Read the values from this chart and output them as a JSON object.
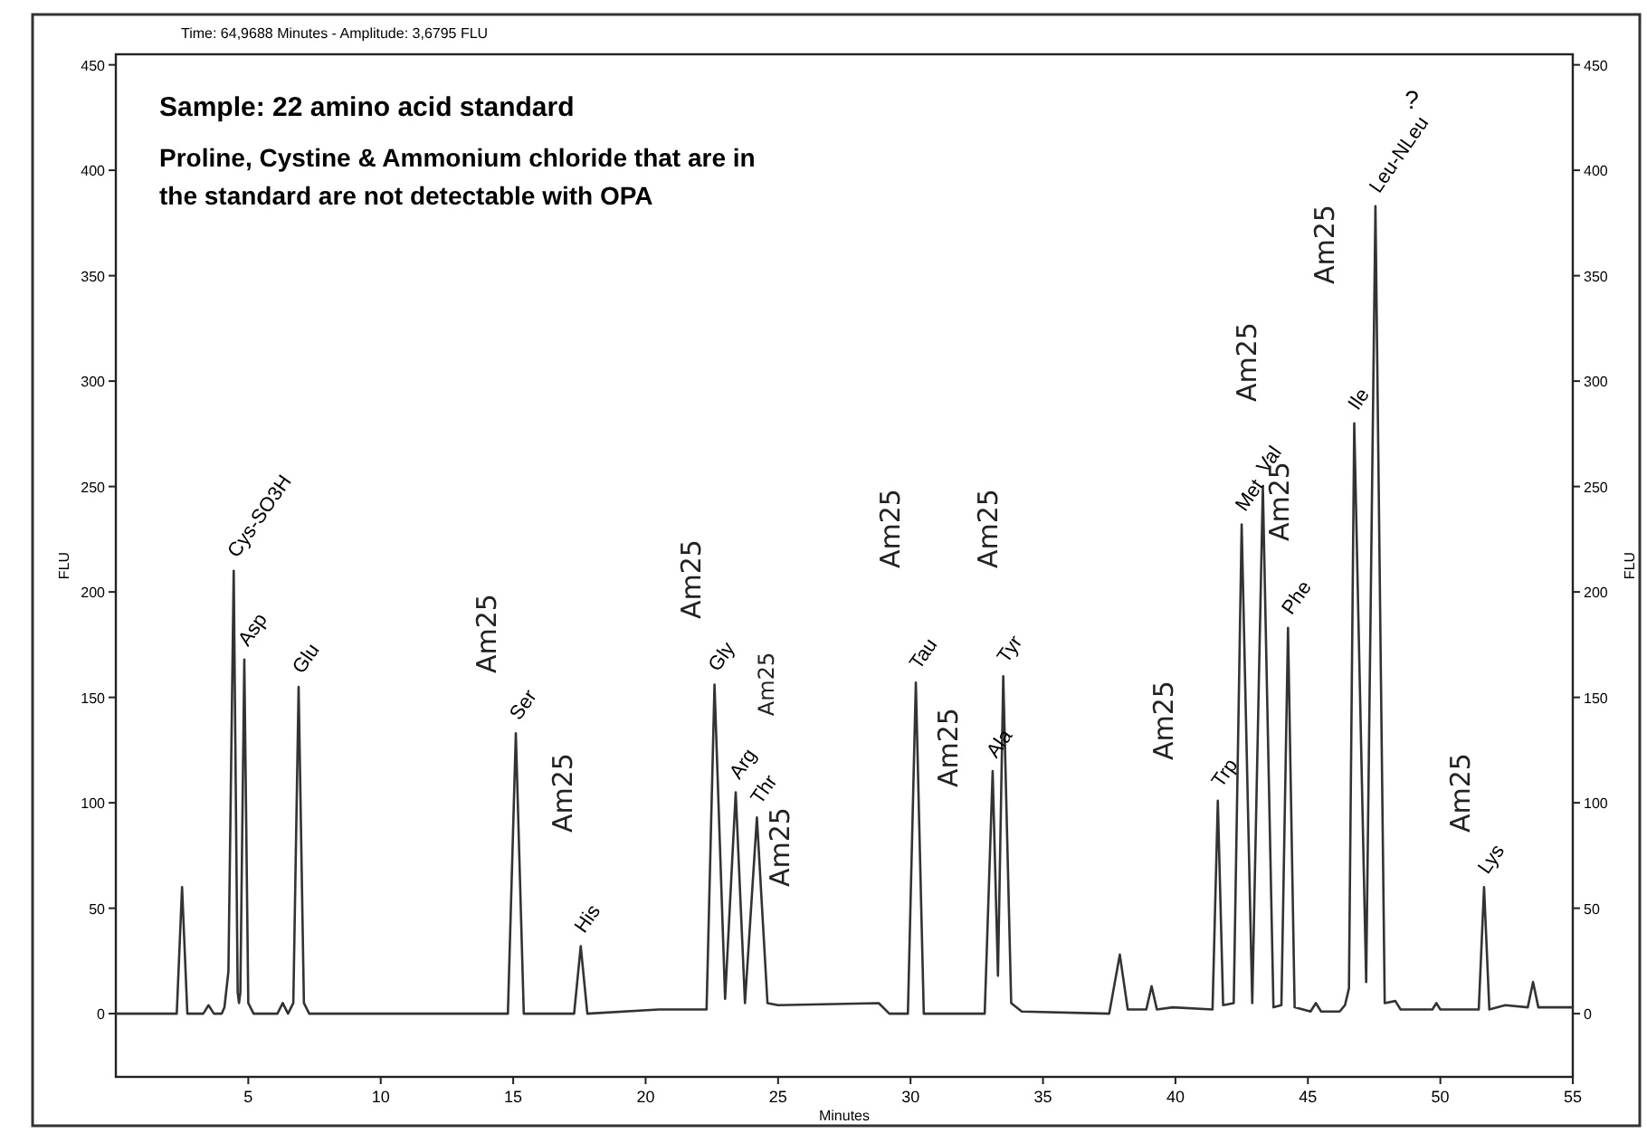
{
  "chart_data": {
    "type": "line",
    "title": "Sample: 22 amino acid standard",
    "subtitle": "Proline, Cystine & Ammonium chloride that are in the standard are not detectable with OPA",
    "xlabel": "Minutes",
    "ylabel": "FLU",
    "y2label": "FLU",
    "xlim": [
      0,
      55
    ],
    "xticks": [
      5,
      10,
      15,
      20,
      25,
      30,
      35,
      40,
      45,
      50,
      55
    ],
    "ylim": [
      -30,
      455
    ],
    "yticks": [
      0,
      50,
      100,
      150,
      200,
      250,
      300,
      350,
      400,
      450
    ],
    "y2lim": [
      -30,
      455
    ],
    "y2ticks": [
      0,
      50,
      100,
      150,
      200,
      250,
      300,
      350,
      400,
      450
    ],
    "grid": false,
    "marker": "none",
    "line_style": "solid",
    "series": [
      {
        "color": "#333333",
        "x": [
          0,
          2.3,
          2.5,
          2.7,
          3.3,
          3.5,
          3.7,
          4.0,
          4.1,
          4.25,
          4.45,
          4.6,
          4.65,
          4.7,
          4.85,
          5.0,
          5.2,
          6.1,
          6.3,
          6.5,
          6.7,
          6.9,
          7.1,
          7.3,
          14.8,
          15.1,
          15.4,
          17.3,
          17.55,
          17.8,
          20.5,
          22.3,
          22.6,
          23.0,
          23.4,
          23.75,
          24.2,
          24.6,
          25.0,
          28.8,
          29.2,
          29.9,
          30.2,
          30.5,
          32.8,
          33.1,
          33.3,
          33.5,
          33.8,
          34.2,
          37.5,
          37.9,
          38.2,
          38.9,
          39.1,
          39.3,
          39.9,
          41.4,
          41.6,
          41.8,
          42.2,
          42.5,
          42.9,
          43.3,
          43.7,
          44.0,
          44.25,
          44.5,
          45.1,
          45.3,
          45.5,
          46.2,
          46.4,
          46.55,
          46.75,
          47.2,
          47.55,
          47.9,
          48.3,
          48.5,
          49.7,
          49.85,
          50.0,
          51.45,
          51.65,
          51.85,
          52.45,
          53.3,
          53.5,
          53.7,
          55
        ],
        "values": [
          0,
          0,
          60,
          0,
          0,
          4,
          0,
          0,
          3,
          20,
          210,
          10,
          5,
          10,
          168,
          5,
          0,
          0,
          5,
          0,
          5,
          155,
          5,
          0,
          0,
          133,
          0,
          0,
          32,
          0,
          2,
          2,
          156,
          7,
          105,
          5,
          93,
          5,
          4,
          5,
          0,
          0,
          157,
          0,
          0,
          115,
          18,
          160,
          5,
          1,
          0,
          28,
          2,
          2,
          13,
          2,
          3,
          2,
          101,
          4,
          5,
          232,
          5,
          250,
          3,
          4,
          183,
          3,
          1,
          5,
          1,
          1,
          4,
          12,
          280,
          15,
          383,
          5,
          6,
          2,
          2,
          5,
          2,
          2,
          60,
          2,
          4,
          3,
          15,
          3,
          3
        ]
      }
    ],
    "annotations": [
      "Time: 64,9688 Minutes - Amplitude: 3,6795 FLU",
      {
        "text": "Cys-SO3H",
        "x": 4.45,
        "y": 214
      },
      {
        "text": "Asp",
        "x": 4.85,
        "y": 172
      },
      {
        "text": "Glu",
        "x": 6.9,
        "y": 159
      },
      {
        "text": "Ser",
        "x": 15.1,
        "y": 137
      },
      {
        "text": "His",
        "x": 17.55,
        "y": 36
      },
      {
        "text": "Gly",
        "x": 22.6,
        "y": 160
      },
      {
        "text": "Arg",
        "x": 23.4,
        "y": 109
      },
      {
        "text": "Thr",
        "x": 24.2,
        "y": 97
      },
      {
        "text": "Tau",
        "x": 30.2,
        "y": 161
      },
      {
        "text": "Ala",
        "x": 33.1,
        "y": 119
      },
      {
        "text": "Tyr",
        "x": 33.5,
        "y": 164
      },
      {
        "text": "Trp",
        "x": 41.6,
        "y": 105
      },
      {
        "text": "Met",
        "x": 42.5,
        "y": 236
      },
      {
        "text": "Val",
        "x": 43.3,
        "y": 254
      },
      {
        "text": "Phe",
        "x": 44.25,
        "y": 187
      },
      {
        "text": "Ile",
        "x": 46.75,
        "y": 284
      },
      {
        "text": "Leu-NLeu",
        "x": 47.55,
        "y": 387
      },
      {
        "text": "Lys",
        "x": 51.65,
        "y": 64
      },
      "?",
      "Am25",
      "Am25",
      "Am25",
      "Am25",
      "Am25",
      "Am25",
      "Am25",
      "Am25",
      "Am25",
      "Am25",
      "Am25",
      "Am25",
      "Am25"
    ]
  }
}
